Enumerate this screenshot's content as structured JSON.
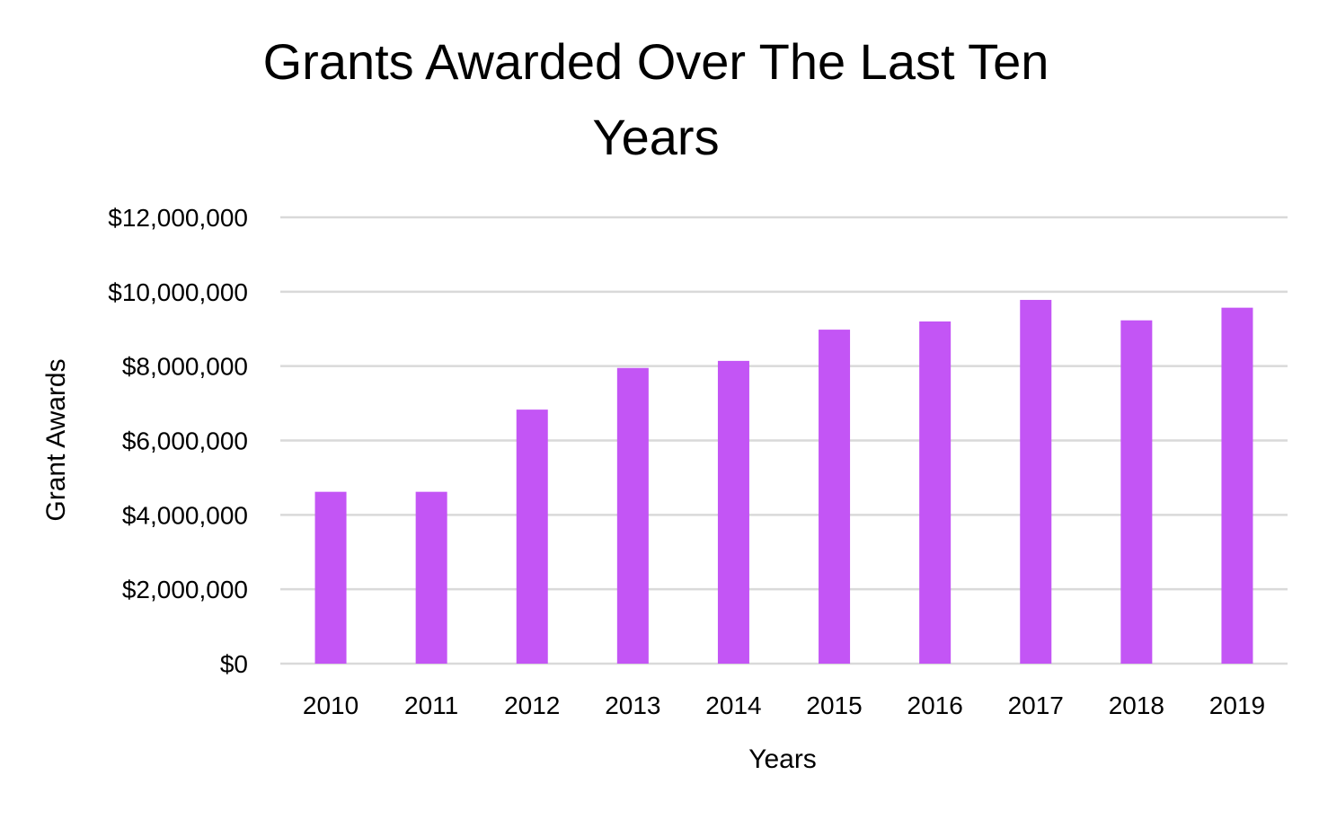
{
  "chart_data": {
    "type": "bar",
    "title_lines": [
      "Grants Awarded Over The Last Ten",
      "Years"
    ],
    "xlabel": "Years",
    "ylabel": "Grant Awards",
    "categories": [
      "2010",
      "2011",
      "2012",
      "2013",
      "2014",
      "2015",
      "2016",
      "2017",
      "2018",
      "2019"
    ],
    "values": [
      4620000,
      4620000,
      6830000,
      7950000,
      8140000,
      8980000,
      9200000,
      9780000,
      9230000,
      9570000
    ],
    "ylim": [
      0,
      12000000
    ],
    "y_ticks": [
      0,
      2000000,
      4000000,
      6000000,
      8000000,
      10000000,
      12000000
    ],
    "y_tick_labels": [
      "$0",
      "$2,000,000",
      "$4,000,000",
      "$6,000,000",
      "$8,000,000",
      "$10,000,000",
      "$12,000,000"
    ],
    "bar_color": "#c355f5",
    "grid": true,
    "legend": "none"
  }
}
